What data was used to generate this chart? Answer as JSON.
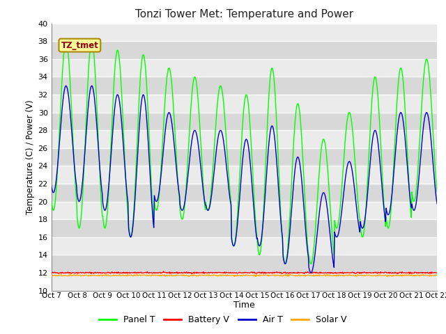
{
  "title": "Tonzi Tower Met: Temperature and Power",
  "xlabel": "Time",
  "ylabel": "Temperature (C) / Power (V)",
  "ylim": [
    10,
    40
  ],
  "yticks": [
    10,
    12,
    14,
    16,
    18,
    20,
    22,
    24,
    26,
    28,
    30,
    32,
    34,
    36,
    38,
    40
  ],
  "xtick_labels": [
    "Oct 7",
    "Oct 8",
    "Oct 9",
    "Oct 10",
    "Oct 11",
    "Oct 12",
    "Oct 13",
    "Oct 14",
    "Oct 15",
    "Oct 16",
    "Oct 17",
    "Oct 18",
    "Oct 19",
    "Oct 20",
    "Oct 21",
    "Oct 22"
  ],
  "num_days": 15,
  "panel_t_color": "#00FF00",
  "air_t_color": "#0000CC",
  "battery_v_color": "#FF0000",
  "solar_v_color": "#FFA500",
  "watermark_text": "TZ_tmet",
  "watermark_fg": "#8B0000",
  "watermark_bg": "#FFFF99",
  "watermark_border": "#AA8800",
  "stripe_light": "#EBEBEB",
  "stripe_dark": "#D8D8D8",
  "grid_color": "#FFFFFF",
  "fig_bg": "#FFFFFF",
  "panel_peaks": [
    38,
    38,
    37,
    36.5,
    35,
    34,
    33,
    32,
    35,
    31,
    27,
    30,
    34,
    35,
    36
  ],
  "panel_valleys": [
    19,
    17,
    17,
    16,
    19,
    18,
    19,
    15,
    14,
    13,
    13,
    17,
    16,
    17,
    20
  ],
  "air_peaks": [
    33,
    33,
    32,
    32,
    30,
    28,
    28,
    27,
    28.5,
    25,
    21,
    24.5,
    28,
    30,
    30
  ],
  "air_valleys": [
    21,
    20,
    19,
    16,
    20,
    19,
    19,
    15,
    15,
    13,
    12,
    16,
    17,
    18.5,
    19
  ]
}
